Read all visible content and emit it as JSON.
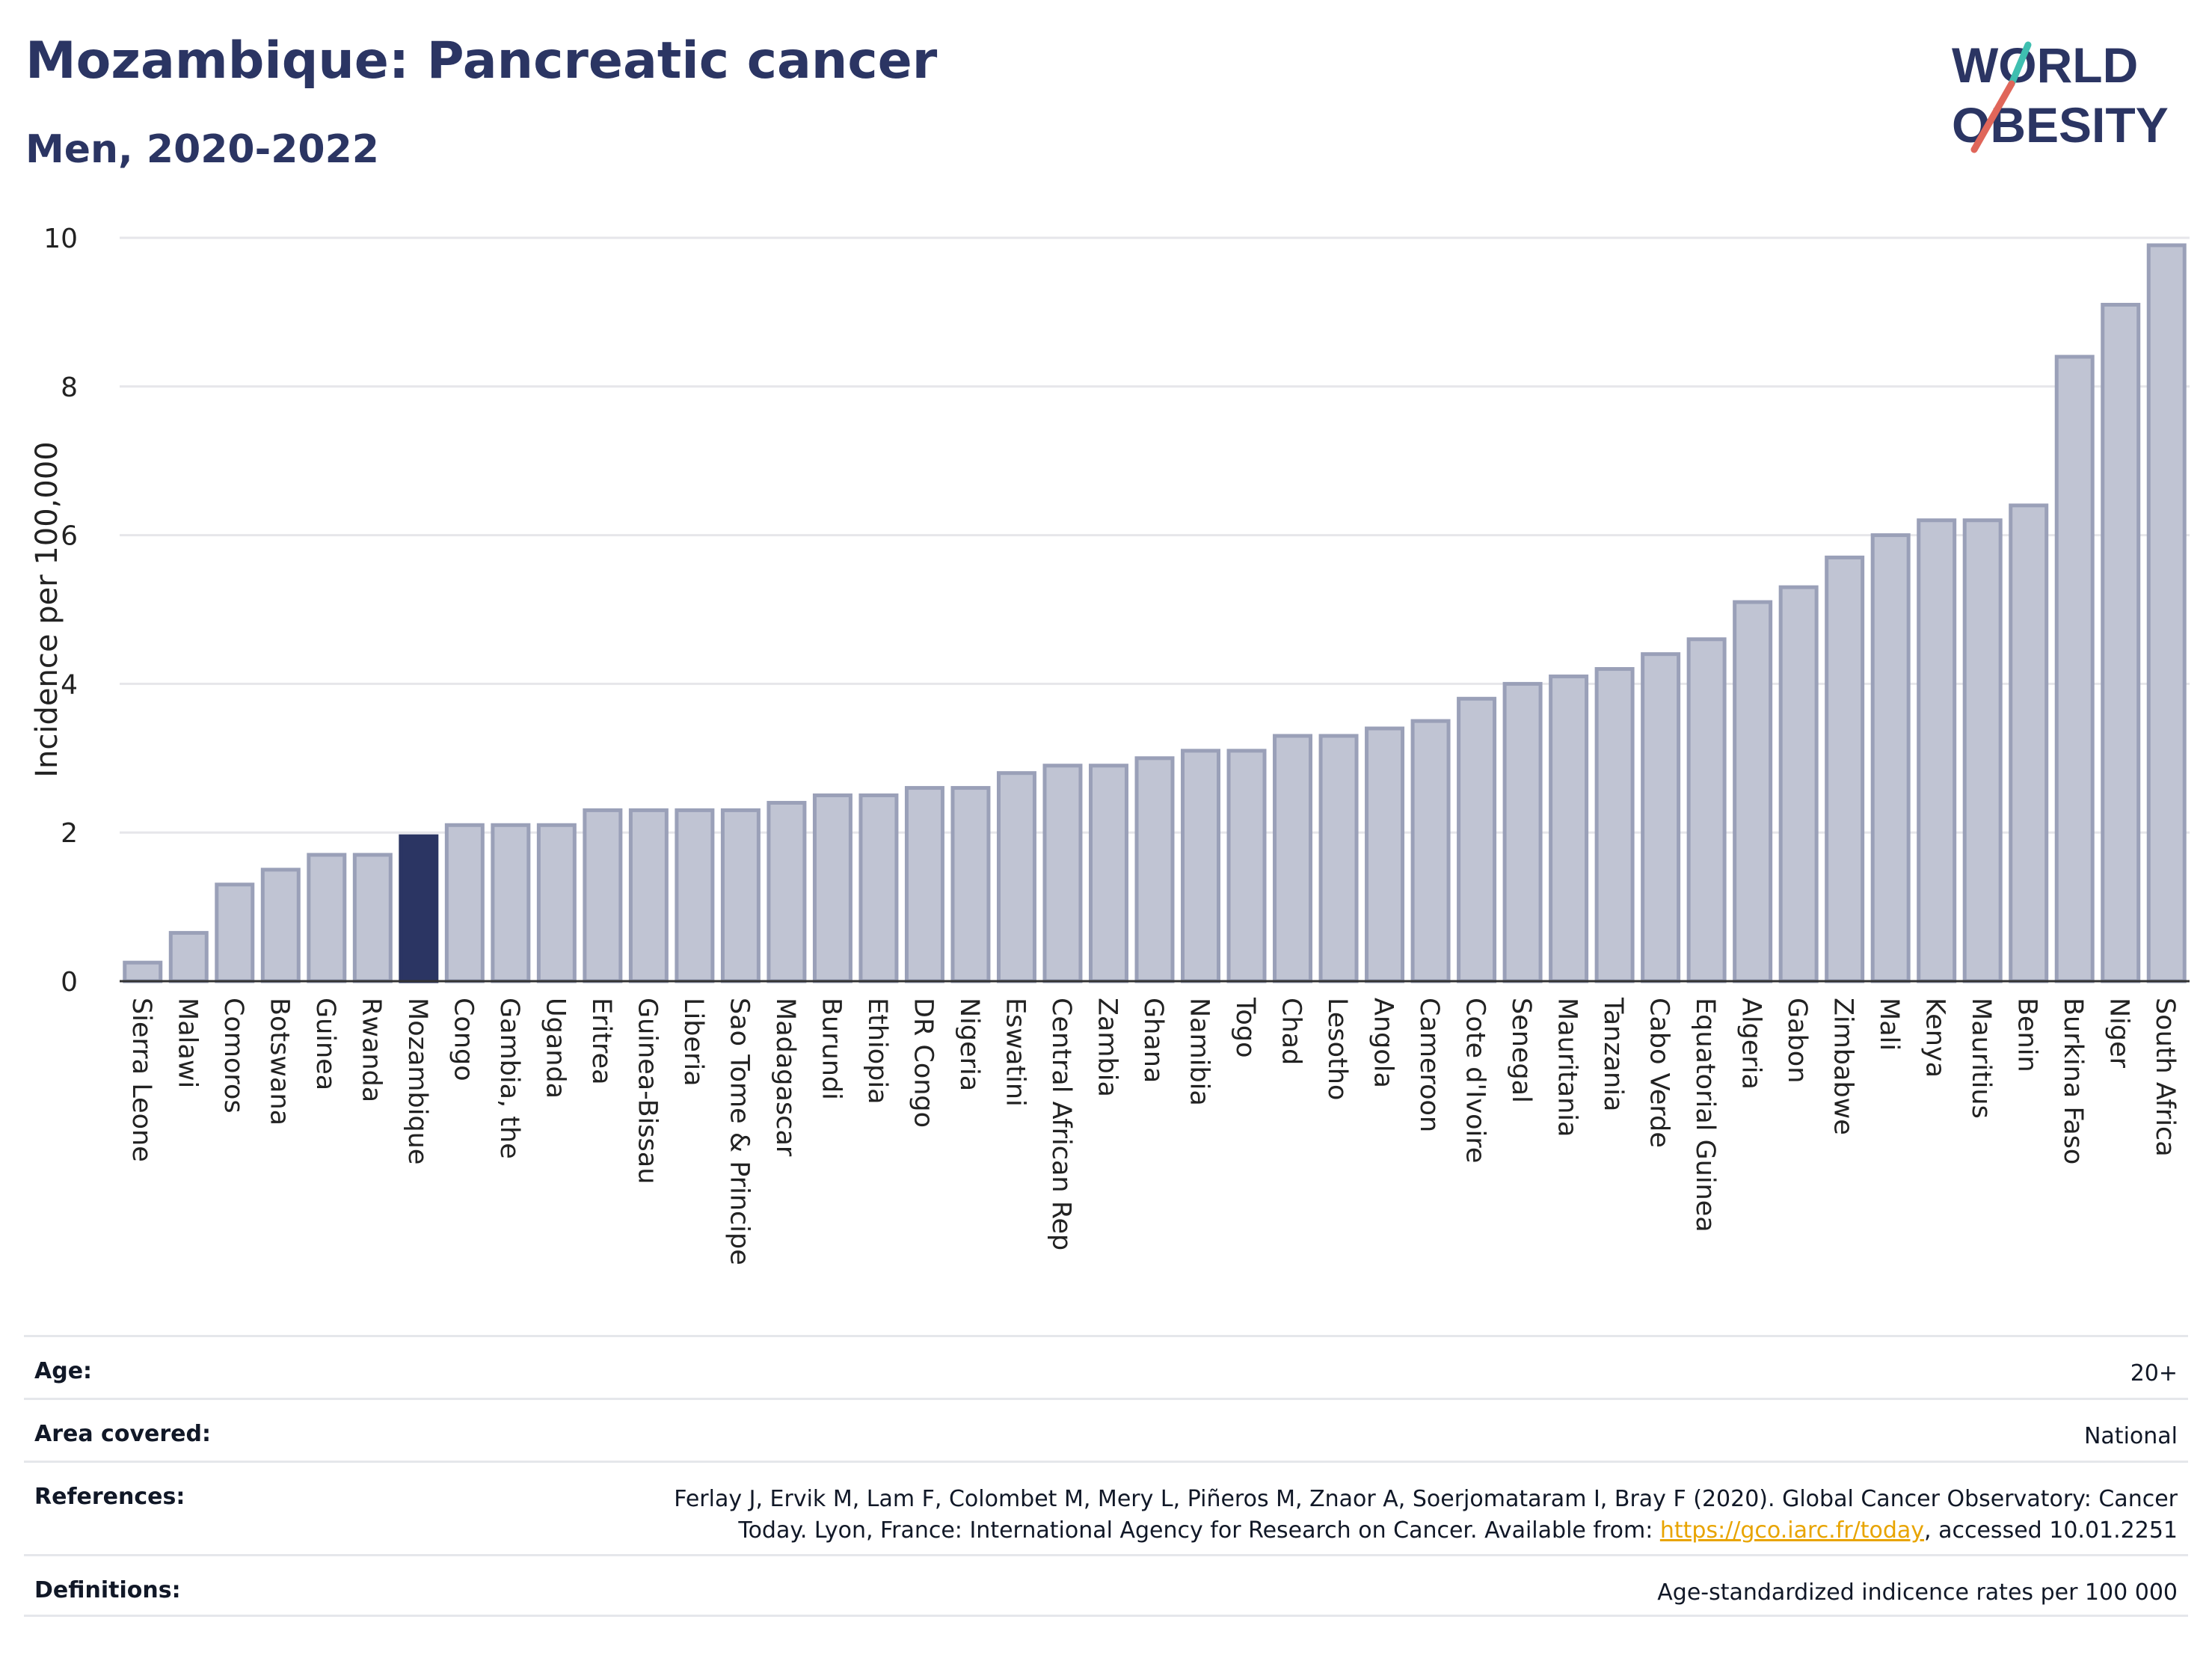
{
  "title": "Mozambique: Pancreatic cancer",
  "subtitle": "Men, 2020-2022",
  "logo": {
    "line1": "WORLD",
    "line2": "OBESITY",
    "accent_colors": [
      "#3fbfb0",
      "#e0665a"
    ],
    "text_color": "#2b3563"
  },
  "colors": {
    "bar": "#c0c4d3",
    "bar_stroke": "#9aa0b8",
    "highlight": "#2b3563",
    "grid": "#e6e6ea",
    "axis": "#333333"
  },
  "chart_data": {
    "type": "bar",
    "ylabel": "Incidence per 100,000",
    "xlabel": "",
    "ylim": [
      0,
      10
    ],
    "yticks": [
      0,
      2,
      4,
      6,
      8,
      10
    ],
    "highlight": "Mozambique",
    "categories": [
      "Sierra Leone",
      "Malawi",
      "Comoros",
      "Botswana",
      "Guinea",
      "Rwanda",
      "Mozambique",
      "Congo",
      "Gambia, the",
      "Uganda",
      "Eritrea",
      "Guinea-Bissau",
      "Liberia",
      "Sao Tome & Principe",
      "Madagascar",
      "Burundi",
      "Ethiopia",
      "DR Congo",
      "Nigeria",
      "Eswatini",
      "Central African Rep",
      "Zambia",
      "Ghana",
      "Namibia",
      "Togo",
      "Chad",
      "Lesotho",
      "Angola",
      "Cameroon",
      "Cote d'Ivoire",
      "Senegal",
      "Mauritania",
      "Tanzania",
      "Cabo Verde",
      "Equatorial Guinea",
      "Algeria",
      "Gabon",
      "Zimbabwe",
      "Mali",
      "Kenya",
      "Mauritius",
      "Benin",
      "Burkina Faso",
      "Niger",
      "South Africa"
    ],
    "values": [
      0.25,
      0.65,
      1.3,
      1.5,
      1.7,
      1.7,
      1.95,
      2.1,
      2.1,
      2.1,
      2.3,
      2.3,
      2.3,
      2.3,
      2.4,
      2.5,
      2.5,
      2.6,
      2.6,
      2.8,
      2.9,
      2.9,
      3.0,
      3.1,
      3.1,
      3.3,
      3.3,
      3.4,
      3.5,
      3.8,
      4.0,
      4.1,
      4.2,
      4.4,
      4.6,
      5.1,
      5.3,
      5.7,
      6.0,
      6.2,
      6.2,
      6.4,
      8.4,
      9.1,
      9.9
    ]
  },
  "meta": {
    "age_label": "Age:",
    "age_value": "20+",
    "area_label": "Area covered:",
    "area_value": "National",
    "references_label": "References:",
    "references_line1": "Ferlay J, Ervik M, Lam F, Colombet M, Mery L, Piñeros M, Znaor A, Soerjomataram I, Bray F (2020). Global Cancer Observatory: Cancer",
    "references_line2_pre": "Today. Lyon, France: International Agency for Research on Cancer. Available from: ",
    "references_link": "https://gco.iarc.fr/today",
    "references_line2_post": ", accessed 10.01.2251",
    "definitions_label": "Definitions:",
    "definitions_value": "Age-standardized indicence rates per 100 000"
  }
}
